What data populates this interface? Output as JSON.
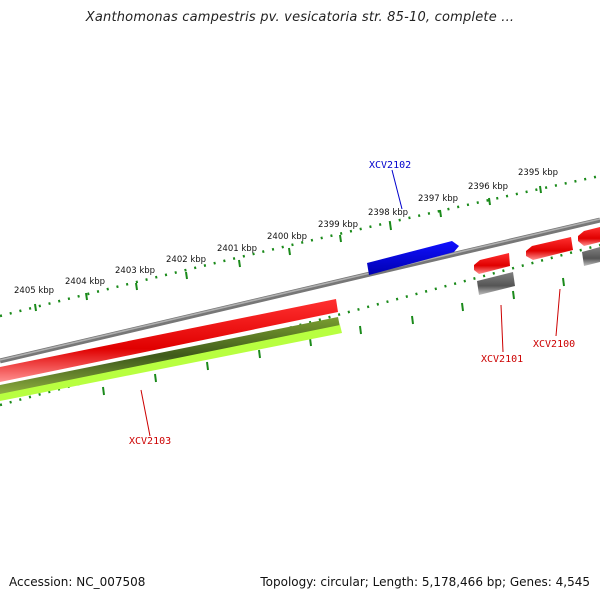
{
  "title": "Xanthomonas campestris pv. vesicatoria str. 85-10, complete ...",
  "footer": {
    "accession": "Accession: NC_007508",
    "topology": "Topology: circular; Length: 5,178,466 bp; Genes: 4,545"
  },
  "ruler": {
    "labels": [
      "2395 kbp",
      "2396 kbp",
      "2397 kbp",
      "2398 kbp",
      "2399 kbp",
      "2400 kbp",
      "2401 kbp",
      "2402 kbp",
      "2403 kbp",
      "2404 kbp",
      "2405 kbp"
    ]
  },
  "gene_labels": {
    "xcv2102": "XCV2102",
    "xcv2101": "XCV2101",
    "xcv2100": "XCV2100",
    "xcv2103": "XCV2103"
  },
  "colors": {
    "backbone": "#888888",
    "gene_forward": "#0000ee",
    "gene_reverse": "#ee0000",
    "cds": "#707070",
    "rna": "#6b8e23",
    "rna_light": "#b8ff40",
    "ruler": "#1a8a1a",
    "label_blue": "#0000cc",
    "label_red": "#cc0000"
  }
}
